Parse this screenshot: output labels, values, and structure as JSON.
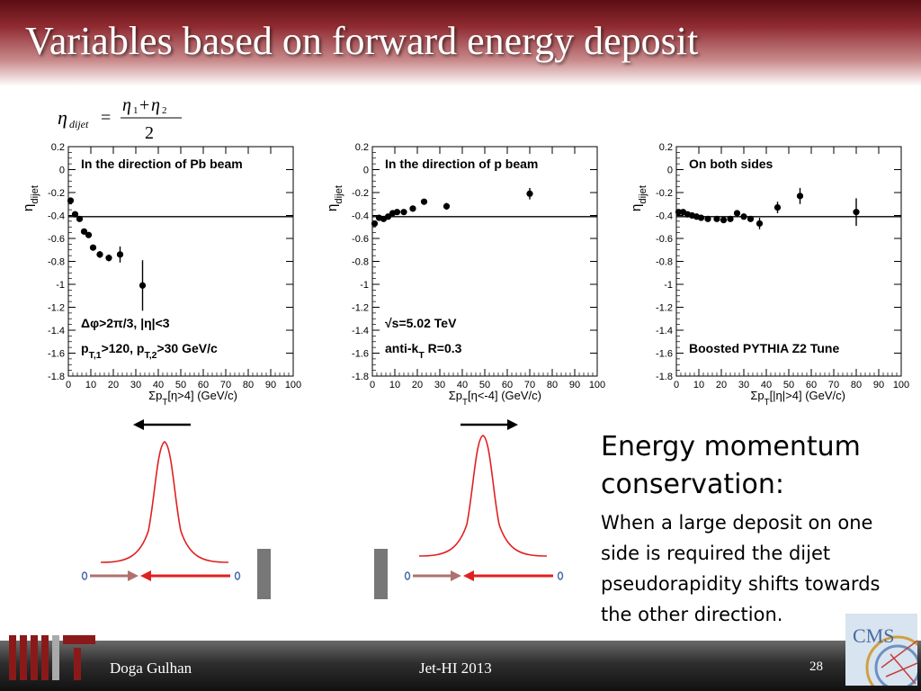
{
  "slide": {
    "title": "Variables based on forward energy deposit",
    "formula": {
      "lhs_symbol": "η",
      "lhs_sub": "dijet",
      "equals": "=",
      "numerator_a": "η",
      "numerator_a_sub": "1",
      "numerator_plus": "+",
      "numerator_b": "η",
      "numerator_b_sub": "2",
      "denominator": "2"
    },
    "side_text": {
      "heading": "Energy momentum conservation:",
      "body": "When a large deposit on one side is required the dijet pseudorapidity shifts towards the other direction."
    },
    "footer": {
      "author": "Doga Gulhan",
      "event": "Jet-HI 2013",
      "page": "28"
    },
    "logos": {
      "left": "MIT",
      "right": "CMS"
    },
    "colors": {
      "header": "#8e2a30",
      "curve": "#e02020",
      "arrow_dark": "#b03030",
      "arrow_light": "#b07070",
      "block": "#777777"
    }
  },
  "chart_data": [
    {
      "type": "scatter",
      "ylabel": "η_dijet",
      "xlabel": "Σp_T[η>4] (GeV/c)",
      "xlim": [
        0,
        100
      ],
      "ylim": [
        -1.8,
        0.2
      ],
      "x_ticks": [
        0,
        10,
        20,
        30,
        40,
        50,
        60,
        70,
        80,
        90,
        100
      ],
      "y_ticks": [
        0.2,
        0,
        -0.2,
        -0.4,
        -0.6,
        -0.8,
        -1,
        -1.2,
        -1.4,
        -1.6,
        -1.8
      ],
      "reference_line": -0.41,
      "annotations": [
        "In the direction of Pb beam",
        "Δφ>2π/3, |η|<3",
        "p_T,1>120, p_T,2>30 GeV/c"
      ],
      "points": [
        {
          "x": 1,
          "y": -0.27,
          "err": 0.02
        },
        {
          "x": 3,
          "y": -0.39,
          "err": 0.02
        },
        {
          "x": 5,
          "y": -0.43,
          "err": 0.02
        },
        {
          "x": 7,
          "y": -0.54,
          "err": 0.02
        },
        {
          "x": 9,
          "y": -0.57,
          "err": 0.02
        },
        {
          "x": 11,
          "y": -0.68,
          "err": 0.02
        },
        {
          "x": 14,
          "y": -0.74,
          "err": 0.03
        },
        {
          "x": 18,
          "y": -0.77,
          "err": 0.03
        },
        {
          "x": 23,
          "y": -0.74,
          "err": 0.07
        },
        {
          "x": 33,
          "y": -1.01,
          "err": 0.22
        }
      ]
    },
    {
      "type": "scatter",
      "ylabel": "η_dijet",
      "xlabel": "Σp_T[η<-4] (GeV/c)",
      "xlim": [
        0,
        100
      ],
      "ylim": [
        -1.8,
        0.2
      ],
      "x_ticks": [
        0,
        10,
        20,
        30,
        40,
        50,
        60,
        70,
        80,
        90,
        100
      ],
      "y_ticks": [
        0.2,
        0,
        -0.2,
        -0.4,
        -0.6,
        -0.8,
        -1,
        -1.2,
        -1.4,
        -1.6,
        -1.8
      ],
      "reference_line": -0.41,
      "annotations": [
        "In the direction of p beam",
        "√s=5.02 TeV",
        "anti-k_T R=0.3"
      ],
      "points": [
        {
          "x": 1,
          "y": -0.47,
          "err": 0.02
        },
        {
          "x": 3,
          "y": -0.42,
          "err": 0.02
        },
        {
          "x": 5,
          "y": -0.43,
          "err": 0.02
        },
        {
          "x": 7,
          "y": -0.41,
          "err": 0.02
        },
        {
          "x": 9,
          "y": -0.38,
          "err": 0.02
        },
        {
          "x": 11,
          "y": -0.37,
          "err": 0.02
        },
        {
          "x": 14,
          "y": -0.37,
          "err": 0.02
        },
        {
          "x": 18,
          "y": -0.34,
          "err": 0.02
        },
        {
          "x": 23,
          "y": -0.28,
          "err": 0.02
        },
        {
          "x": 33,
          "y": -0.32,
          "err": 0.03
        },
        {
          "x": 70,
          "y": -0.21,
          "err": 0.05
        }
      ]
    },
    {
      "type": "scatter",
      "ylabel": "η_dijet",
      "xlabel": "Σp_T[|η|>4] (GeV/c)",
      "xlim": [
        0,
        100
      ],
      "ylim": [
        -1.8,
        0.2
      ],
      "x_ticks": [
        0,
        10,
        20,
        30,
        40,
        50,
        60,
        70,
        80,
        90,
        100
      ],
      "y_ticks": [
        0.2,
        0,
        -0.2,
        -0.4,
        -0.6,
        -0.8,
        -1,
        -1.2,
        -1.4,
        -1.6,
        -1.8
      ],
      "reference_line": -0.41,
      "annotations": [
        "On both sides",
        "Boosted PYTHIA Z2 Tune"
      ],
      "points": [
        {
          "x": 1,
          "y": -0.37,
          "err": 0.02
        },
        {
          "x": 3,
          "y": -0.37,
          "err": 0.02
        },
        {
          "x": 5,
          "y": -0.39,
          "err": 0.02
        },
        {
          "x": 7,
          "y": -0.4,
          "err": 0.02
        },
        {
          "x": 9,
          "y": -0.41,
          "err": 0.02
        },
        {
          "x": 11,
          "y": -0.42,
          "err": 0.02
        },
        {
          "x": 14,
          "y": -0.43,
          "err": 0.02
        },
        {
          "x": 18,
          "y": -0.43,
          "err": 0.02
        },
        {
          "x": 21,
          "y": -0.44,
          "err": 0.02
        },
        {
          "x": 24,
          "y": -0.43,
          "err": 0.02
        },
        {
          "x": 27,
          "y": -0.38,
          "err": 0.02
        },
        {
          "x": 30,
          "y": -0.41,
          "err": 0.02
        },
        {
          "x": 33,
          "y": -0.43,
          "err": 0.02
        },
        {
          "x": 37,
          "y": -0.47,
          "err": 0.05
        },
        {
          "x": 45,
          "y": -0.33,
          "err": 0.05
        },
        {
          "x": 55,
          "y": -0.23,
          "err": 0.07
        },
        {
          "x": 80,
          "y": -0.37,
          "err": 0.12
        }
      ]
    }
  ]
}
